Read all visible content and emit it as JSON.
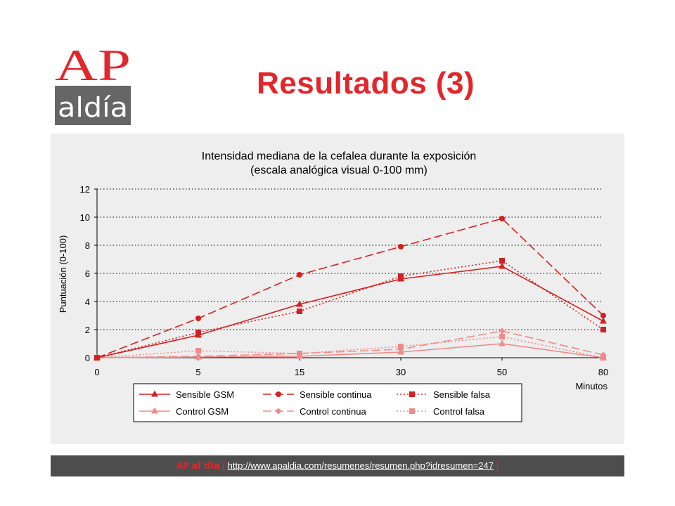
{
  "slide": {
    "title": "Resultados (3)"
  },
  "logo": {
    "top_text": "AP",
    "bottom_text": "aldía",
    "top_color": "#e3262b",
    "bottom_bg": "#666666"
  },
  "footer": {
    "brand_ap": "AP",
    "brand_aldia": "al día",
    "bracket_open": "[",
    "url": "http://www.apaldia.com/resumenes/resumen.php?idresumen=247",
    "bracket_close": "]"
  },
  "colors": {
    "sensible": "#d62020",
    "control": "#f08a8a",
    "title_red": "#e3262b"
  },
  "chart_data": {
    "type": "line",
    "title": "Intensidad mediana de la cefalea durante la exposición",
    "subtitle": "(escala analógica visual 0-100 mm)",
    "xlabel": "Minutos",
    "ylabel": "Puntuación (0-100)",
    "categories": [
      "0",
      "5",
      "15",
      "30",
      "50",
      "80"
    ],
    "ylim": [
      0,
      12
    ],
    "yticks": [
      0,
      2,
      4,
      6,
      8,
      10,
      12
    ],
    "grid": "horizontal-dotted",
    "legend_position": "bottom",
    "series": [
      {
        "name": "Sensible GSM",
        "values": [
          0,
          1.6,
          3.8,
          5.6,
          6.5,
          2.6
        ],
        "color": "#d62020",
        "dash": "solid",
        "marker": "triangle"
      },
      {
        "name": "Sensible continua",
        "values": [
          0,
          2.8,
          5.9,
          7.9,
          9.9,
          3.0
        ],
        "color": "#d62020",
        "dash": "long-dash",
        "marker": "circle"
      },
      {
        "name": "Sensible falsa",
        "values": [
          0,
          1.8,
          3.3,
          5.8,
          6.9,
          2.0
        ],
        "color": "#d62020",
        "dash": "dot",
        "marker": "square"
      },
      {
        "name": "Control GSM",
        "values": [
          0,
          0.05,
          0.1,
          0.4,
          1.0,
          0.0
        ],
        "color": "#f08a8a",
        "dash": "solid",
        "marker": "triangle"
      },
      {
        "name": "Control continua",
        "values": [
          0,
          0.1,
          0.3,
          0.6,
          1.9,
          0.2
        ],
        "color": "#f08a8a",
        "dash": "long-dash",
        "marker": "diamond"
      },
      {
        "name": "Control falsa",
        "values": [
          0,
          0.5,
          0.3,
          0.8,
          1.5,
          0.0
        ],
        "color": "#f08a8a",
        "dash": "dot",
        "marker": "square"
      }
    ]
  }
}
